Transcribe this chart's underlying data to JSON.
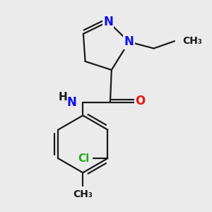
{
  "background_color": "#ebebeb",
  "bond_color": "#1a1a1a",
  "bond_width": 1.6,
  "atom_colors": {
    "N": "#1010ee",
    "O": "#ee1010",
    "Cl": "#22aa22",
    "C": "#1a1a1a",
    "H": "#1a1a1a"
  },
  "font_size_N": 12,
  "font_size_O": 12,
  "font_size_Cl": 11,
  "font_size_CH3": 10,
  "font_size_NH": 12,
  "font_size_H": 11
}
